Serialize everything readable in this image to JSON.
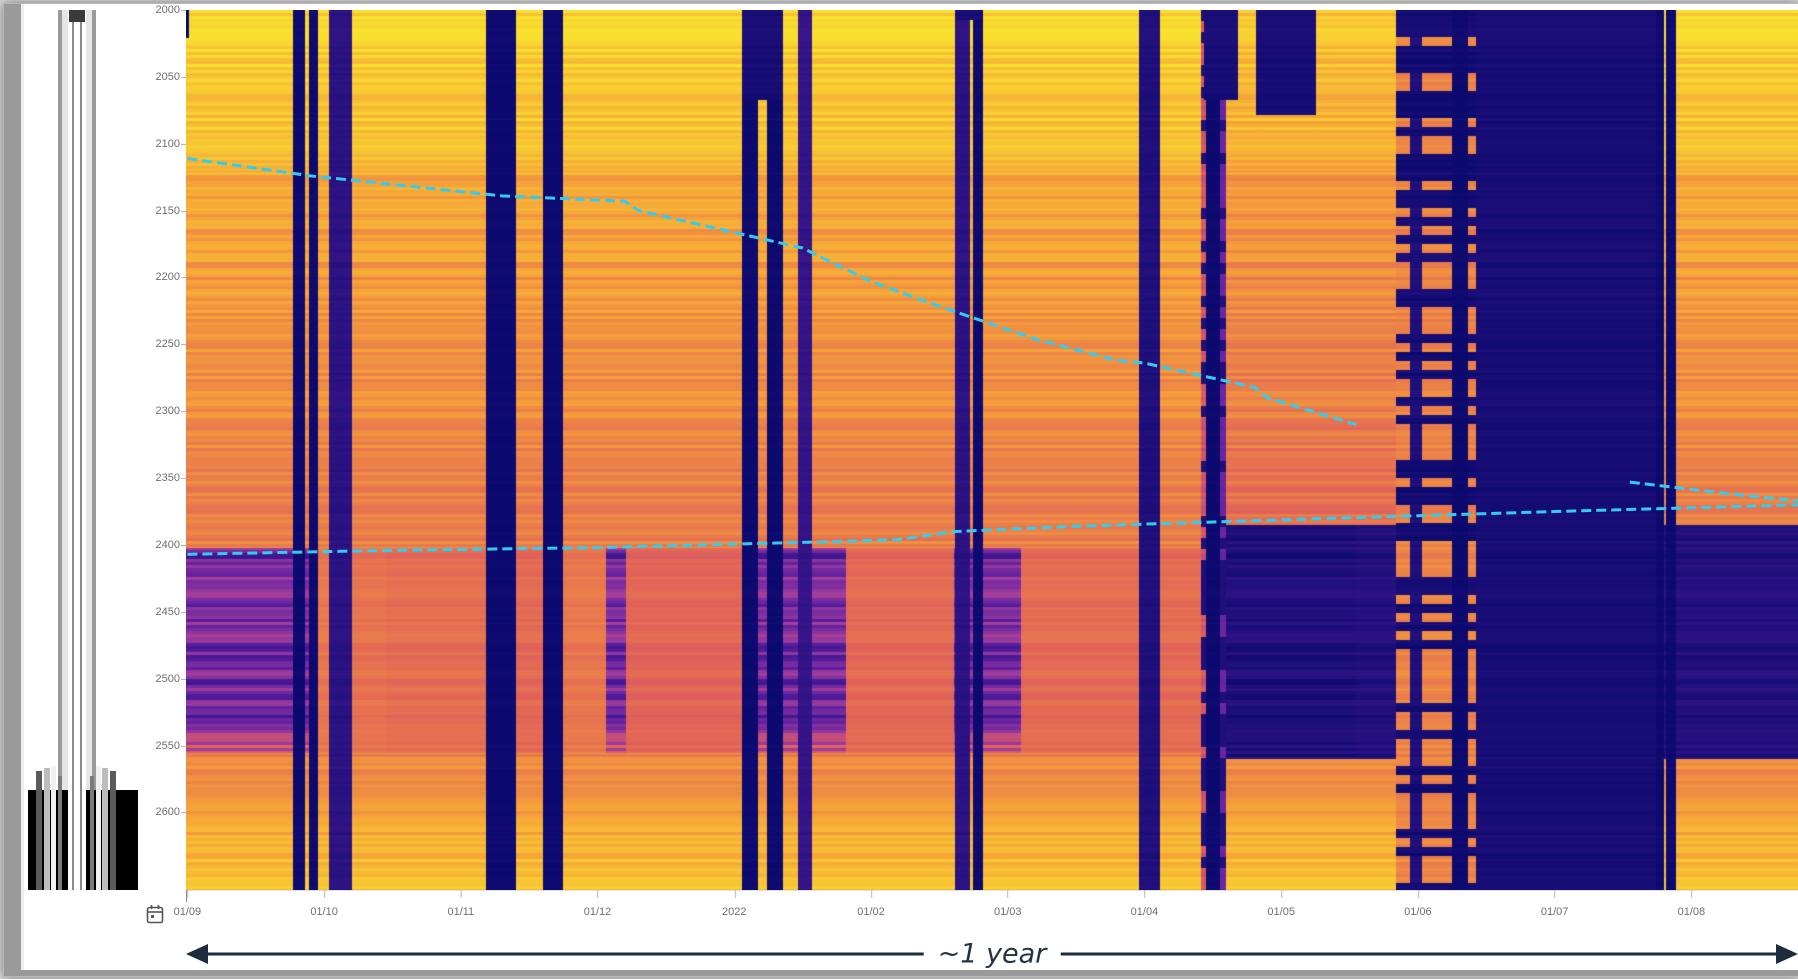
{
  "chart_data": {
    "type": "heatmap",
    "title": "",
    "xlabel": "",
    "ylabel": "",
    "y_ticks": [
      "2000",
      "2050",
      "2100",
      "2150",
      "2200",
      "2250",
      "2300",
      "2350",
      "2400",
      "2450",
      "2500",
      "2550",
      "2600"
    ],
    "ylim": [
      2000,
      2658
    ],
    "y_inverted": true,
    "x_ticks": [
      "01/09",
      "01/10",
      "01/11",
      "01/12",
      "2022",
      "01/02",
      "01/03",
      "01/04",
      "01/05",
      "01/06",
      "01/07",
      "01/08"
    ],
    "x_tick_months": [
      0,
      1,
      2,
      3,
      4,
      5,
      6,
      7,
      8,
      9,
      10,
      11
    ],
    "xlim_months": [
      -0.01,
      11.78
    ],
    "colormap": [
      "#0c0a6e",
      "#5a1ea0",
      "#a03c9c",
      "#e0605a",
      "#f59e3a",
      "#f9e02e"
    ],
    "colorscale_description": "plasma-like: dark blue = low, yellow = high",
    "series": [
      {
        "color": "#33ccee",
        "style": "dashed",
        "points": [
          [
            0.0,
            2111
          ],
          [
            0.9,
            2124
          ],
          [
            2.3,
            2139
          ],
          [
            3.2,
            2143
          ],
          [
            3.3,
            2150
          ],
          [
            4.5,
            2178
          ],
          [
            5.0,
            2203
          ],
          [
            5.4,
            2218
          ],
          [
            6.2,
            2246
          ],
          [
            6.8,
            2262
          ],
          [
            7.0,
            2264
          ],
          [
            7.8,
            2282
          ],
          [
            7.9,
            2290
          ],
          [
            8.55,
            2310
          ]
        ]
      },
      {
        "color": "#33ccee",
        "style": "dashed",
        "points": [
          [
            10.55,
            2353
          ],
          [
            11.3,
            2362
          ],
          [
            11.78,
            2367
          ]
        ]
      },
      {
        "color": "#33ccee",
        "style": "dashed",
        "points": [
          [
            0.0,
            2407
          ],
          [
            1.5,
            2404
          ],
          [
            3.0,
            2402
          ],
          [
            4.9,
            2397
          ],
          [
            5.2,
            2396
          ],
          [
            5.6,
            2390
          ],
          [
            6.5,
            2386
          ],
          [
            8.4,
            2380
          ],
          [
            10.0,
            2375
          ],
          [
            11.78,
            2370
          ]
        ]
      }
    ]
  },
  "annotation": {
    "span_label": "~1 year",
    "span_color": "#1e2d3d"
  },
  "icons": {
    "calendar": "calendar-icon",
    "refresh": "refresh-icon",
    "accent": "#3cb44a"
  }
}
